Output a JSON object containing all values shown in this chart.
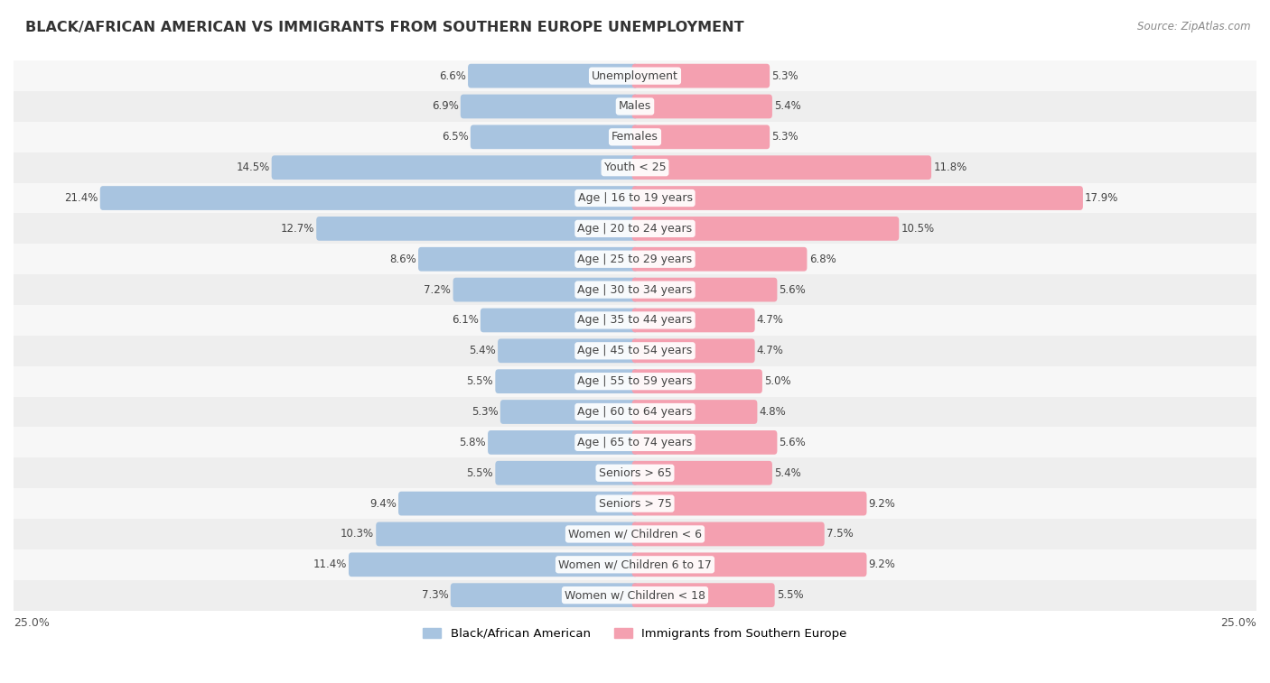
{
  "title": "BLACK/AFRICAN AMERICAN VS IMMIGRANTS FROM SOUTHERN EUROPE UNEMPLOYMENT",
  "source": "Source: ZipAtlas.com",
  "categories": [
    "Unemployment",
    "Males",
    "Females",
    "Youth < 25",
    "Age | 16 to 19 years",
    "Age | 20 to 24 years",
    "Age | 25 to 29 years",
    "Age | 30 to 34 years",
    "Age | 35 to 44 years",
    "Age | 45 to 54 years",
    "Age | 55 to 59 years",
    "Age | 60 to 64 years",
    "Age | 65 to 74 years",
    "Seniors > 65",
    "Seniors > 75",
    "Women w/ Children < 6",
    "Women w/ Children 6 to 17",
    "Women w/ Children < 18"
  ],
  "left_values": [
    6.6,
    6.9,
    6.5,
    14.5,
    21.4,
    12.7,
    8.6,
    7.2,
    6.1,
    5.4,
    5.5,
    5.3,
    5.8,
    5.5,
    9.4,
    10.3,
    11.4,
    7.3
  ],
  "right_values": [
    5.3,
    5.4,
    5.3,
    11.8,
    17.9,
    10.5,
    6.8,
    5.6,
    4.7,
    4.7,
    5.0,
    4.8,
    5.6,
    5.4,
    9.2,
    7.5,
    9.2,
    5.5
  ],
  "left_color": "#a8c4e0",
  "right_color": "#f4a0b0",
  "left_label": "Black/African American",
  "right_label": "Immigrants from Southern Europe",
  "bar_height": 0.55,
  "xlim": 25.0,
  "bg_color": "#ffffff",
  "title_fontsize": 11.5,
  "label_fontsize": 9.0,
  "value_fontsize": 8.5
}
